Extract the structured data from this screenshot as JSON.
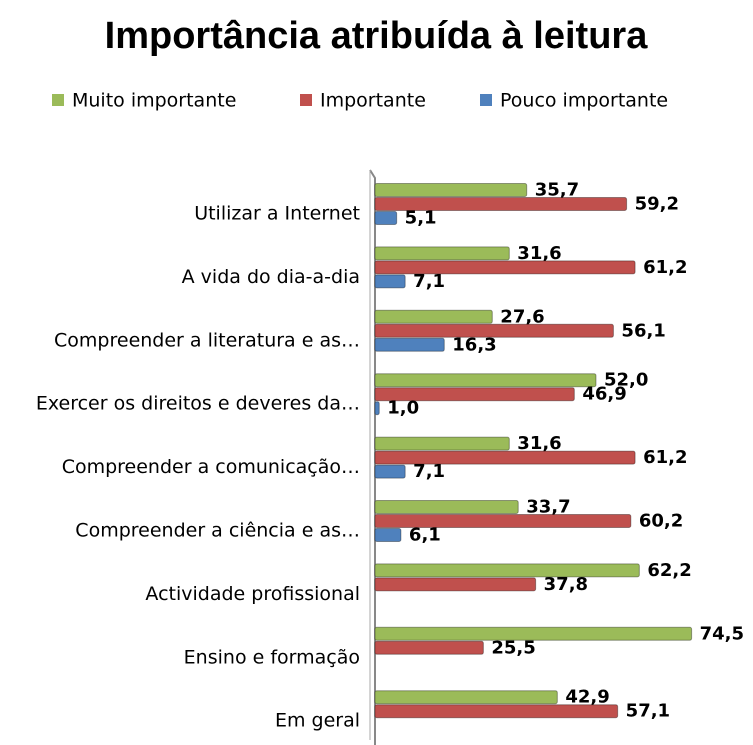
{
  "chart_data": {
    "type": "bar",
    "orientation": "horizontal",
    "title": "Importância atribuída à leitura",
    "categories": [
      "Utilizar a Internet",
      "A vida do dia-a-dia",
      "Compreender  a literatura e as…",
      "Exercer os direitos e deveres da…",
      "Compreender  a comunicação…",
      "Compreender  a ciência e as…",
      "Actividade profissional",
      "Ensino e formação",
      "Em geral"
    ],
    "series": [
      {
        "name": "Muito importante",
        "color": "#9bbb59",
        "values": [
          35.7,
          31.6,
          27.6,
          52.0,
          31.6,
          33.7,
          62.2,
          74.5,
          42.9
        ],
        "value_labels": [
          "35,7",
          "31,6",
          "27,6",
          "52,0",
          "31,6",
          "33,7",
          "62,2",
          "74,5",
          "42,9"
        ]
      },
      {
        "name": "Importante",
        "color": "#c0504d",
        "values": [
          59.2,
          61.2,
          56.1,
          46.9,
          61.2,
          60.2,
          37.8,
          25.5,
          57.1
        ],
        "value_labels": [
          "59,2",
          "61,2",
          "56,1",
          "46,9",
          "61,2",
          "60,2",
          "37,8",
          "25,5",
          "57,1"
        ]
      },
      {
        "name": "Pouco importante",
        "color": "#4f81bd",
        "values": [
          5.1,
          7.1,
          16.3,
          1.0,
          7.1,
          6.1,
          null,
          null,
          null
        ],
        "value_labels": [
          "5,1",
          "7,1",
          "16,3",
          "1,0",
          "7,1",
          "6,1",
          null,
          null,
          null
        ]
      }
    ],
    "xlim": [
      0,
      80
    ],
    "legend": "top"
  }
}
